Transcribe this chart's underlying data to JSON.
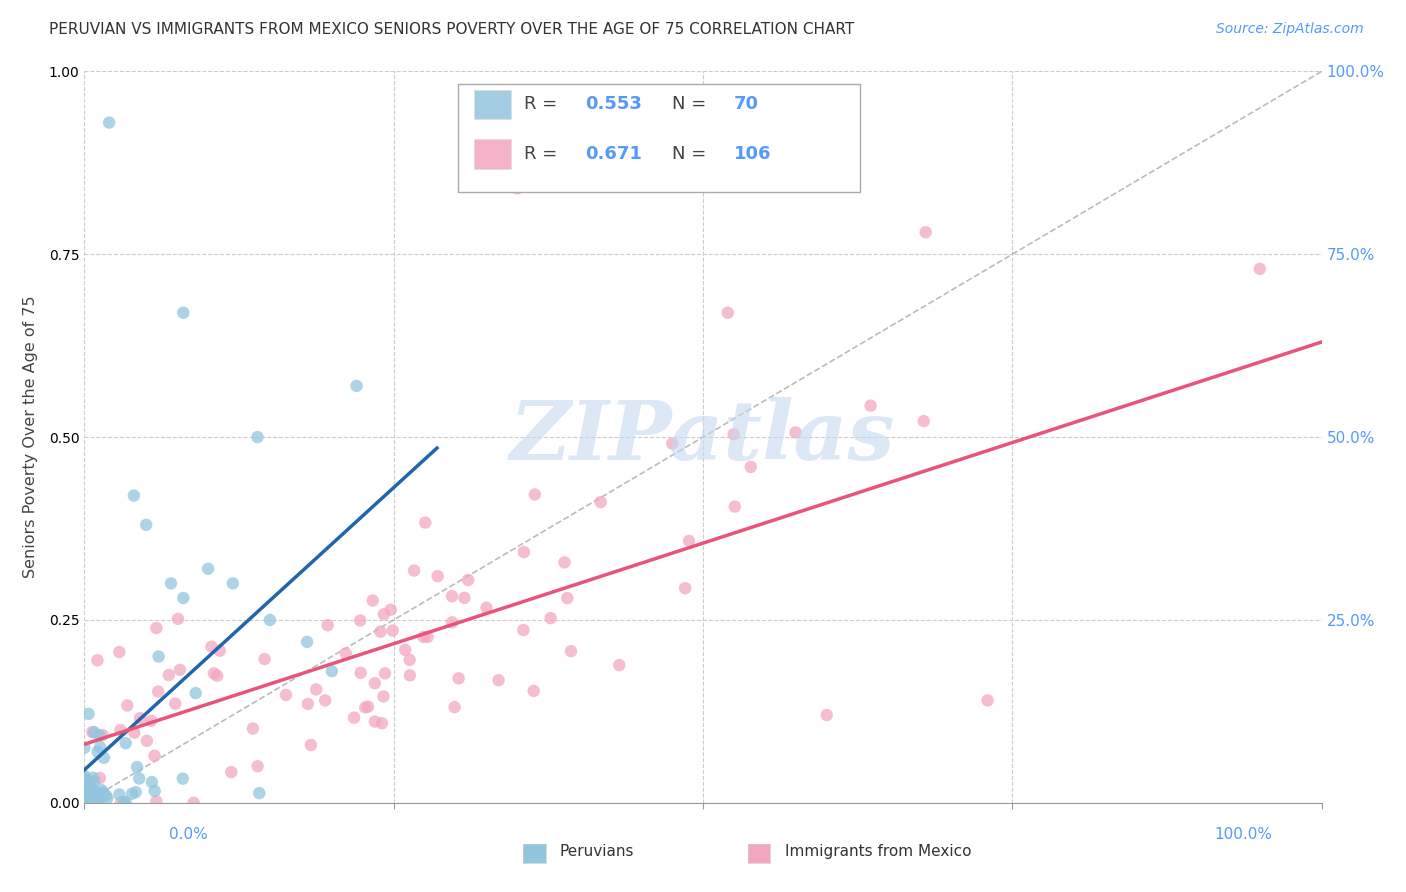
{
  "title": "PERUVIAN VS IMMIGRANTS FROM MEXICO SENIORS POVERTY OVER THE AGE OF 75 CORRELATION CHART",
  "source": "Source: ZipAtlas.com",
  "ylabel": "Seniors Poverty Over the Age of 75",
  "peruvian_R": 0.553,
  "peruvian_N": 70,
  "mexico_R": 0.671,
  "mexico_N": 106,
  "peruvian_color": "#92c5de",
  "mexico_color": "#f4a6c0",
  "peruvian_line_color": "#2166ac",
  "mexico_line_color": "#e8547a",
  "diagonal_color": "#aaaaaa",
  "background_color": "#ffffff",
  "grid_color": "#cccccc",
  "axis_label_color": "#5599ff",
  "title_color": "#333333",
  "watermark_color": "#c5d9f0",
  "watermark": "ZIPatlas",
  "xlim": [
    0,
    1
  ],
  "ylim": [
    0,
    1
  ],
  "xticks": [
    0,
    0.25,
    0.5,
    0.75,
    1.0
  ],
  "yticks": [
    0,
    0.25,
    0.5,
    0.75,
    1.0
  ],
  "xticklabels": [
    "0.0%",
    "",
    "",
    "",
    "100.0%"
  ],
  "yticklabels": [
    "",
    "25.0%",
    "50.0%",
    "75.0%",
    "100.0%"
  ],
  "peru_line_x0": 0.0,
  "peru_line_x1": 0.285,
  "peru_line_y0": 0.045,
  "peru_line_y1": 0.485,
  "mex_line_x0": 0.0,
  "mex_line_x1": 1.0,
  "mex_line_y0": 0.08,
  "mex_line_y1": 0.63
}
